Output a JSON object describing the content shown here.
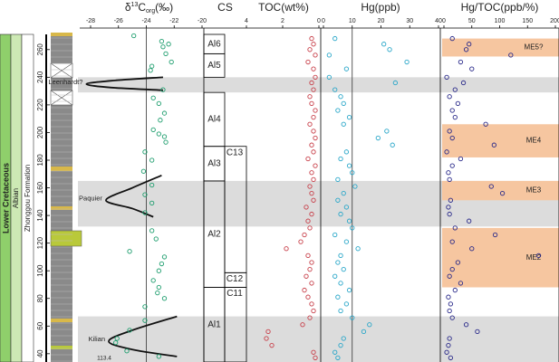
{
  "strat_labels": {
    "system": "Lower Cretaceous",
    "stage": "Albian",
    "formation": "Zhonggou Formation"
  },
  "age_label": 113.4,
  "depth_axis": {
    "ylim": [
      34,
      271
    ],
    "yticks": [
      40,
      60,
      80,
      100,
      120,
      140,
      160,
      180,
      200,
      220,
      240,
      260
    ]
  },
  "highlight_bands": [
    {
      "top": 240,
      "bottom": 229
    },
    {
      "top": 165,
      "bottom": 132
    },
    {
      "top": 67,
      "bottom": 34
    }
  ],
  "chart_data": [
    {
      "type": "scatter",
      "title": {
        "base": "δ",
        "sup": "13",
        "main": "C",
        "sub": "org",
        "unit": "(‰)"
      },
      "xlim": [
        -28,
        -20
      ],
      "xticks": [
        -28,
        -26,
        -24,
        -22,
        -20
      ],
      "color": "#1e9e6e",
      "reference_x": -24,
      "x": [
        -24.9,
        -22.9,
        -22.4,
        -22.8,
        -22.6,
        -22.2,
        -23.6,
        -23.7,
        -22.8,
        -23.5,
        -23.1,
        -22.7,
        -23.0,
        -23.5,
        -23.1,
        -22.7,
        -22.6,
        -24.1,
        -23.6,
        -24.2,
        -23.6,
        -24.1,
        -23.6,
        -24.1,
        -23.6,
        -23.3,
        -25.2,
        -22.7,
        -22.9,
        -23.1,
        -23.5,
        -23.1,
        -23.2,
        -22.7,
        -24.1,
        -24.1,
        -25.2,
        -26.1,
        -26.2,
        -25.4,
        -23.1
      ],
      "y": [
        270,
        266,
        264,
        262,
        257,
        251,
        248,
        245,
        231,
        225,
        221,
        214,
        209,
        202,
        199,
        197,
        193,
        186,
        180,
        172,
        162,
        155,
        149,
        142,
        129,
        123,
        114,
        110,
        105,
        100,
        93,
        88,
        84,
        80,
        74,
        64,
        57,
        51,
        48,
        42,
        38
      ],
      "curves": [
        {
          "label": "Leenhardt?",
          "x": [
            -22.8,
            -26.5,
            -28.3,
            -26.5,
            -22.8
          ],
          "y": [
            240,
            237.5,
            235,
            232.5,
            230.6
          ]
        },
        {
          "label": "Paquier",
          "x": [
            -22.9,
            -25,
            -26.9,
            -25,
            -23.5
          ],
          "y": [
            169,
            160,
            151,
            145,
            139
          ]
        },
        {
          "label": "Kilian",
          "x": [
            -21.8,
            -25,
            -26.7,
            -25,
            -21.8
          ],
          "y": [
            67,
            57,
            49,
            43,
            38
          ]
        }
      ]
    },
    {
      "type": "zones",
      "title": "CS",
      "zones": [
        {
          "label": "Al6",
          "top": 271,
          "bottom": 257
        },
        {
          "label": "Al5",
          "top": 257,
          "bottom": 240
        },
        {
          "label": "Al4",
          "top": 229,
          "bottom": 190
        },
        {
          "label": "Al3",
          "top": 190,
          "bottom": 165
        },
        {
          "label": "Al2",
          "top": 165,
          "bottom": 88
        },
        {
          "label": "Al1",
          "top": 88,
          "bottom": 34
        }
      ],
      "chrons": [
        {
          "label": "C13",
          "top": 190,
          "bottom": 98.6
        },
        {
          "label": "C12",
          "top": 98.6,
          "bottom": 88
        },
        {
          "label": "C11",
          "top": 88,
          "bottom": 34
        }
      ]
    },
    {
      "type": "scatter",
      "title": "TOC(wt%)",
      "xlim": [
        4,
        0
      ],
      "xticks": [
        4,
        2,
        0
      ],
      "color": "#c8404a",
      "x": [
        0.4,
        0.3,
        0.5,
        0.2,
        0.6,
        0.3,
        0.2,
        0.4,
        0.3,
        0.5,
        0.4,
        0.2,
        0.3,
        0.5,
        0.3,
        0.2,
        0.4,
        0.3,
        0.6,
        0.2,
        0.4,
        0.3,
        0.5,
        0.4,
        0.3,
        0.7,
        0.4,
        0.6,
        0.5,
        0.8,
        1.0,
        1.8,
        0.6,
        0.4,
        0.5,
        0.7,
        0.4,
        0.8,
        0.6,
        0.4,
        0.3,
        0.5,
        0.9,
        2.8,
        2.9,
        2.6,
        0.3,
        0.2
      ],
      "y": [
        268,
        264,
        260,
        256,
        251,
        246,
        240,
        236,
        231,
        226,
        221,
        216,
        211,
        206,
        201,
        196,
        191,
        186,
        181,
        176,
        171,
        166,
        161,
        156,
        151,
        146,
        141,
        136,
        131,
        126,
        121,
        116,
        111,
        106,
        101,
        96,
        91,
        86,
        81,
        76,
        71,
        66,
        61,
        56,
        51,
        46,
        41,
        37
      ]
    },
    {
      "type": "scatter",
      "title": "Hg(ppb)",
      "xlim": [
        0,
        40
      ],
      "xticks": [
        0,
        10,
        20,
        30,
        40
      ],
      "color": "#2aa7c9",
      "reference_x": 10,
      "x": [
        4,
        21,
        23,
        2,
        29,
        8,
        2,
        25,
        4,
        6,
        7,
        5,
        9,
        7,
        22,
        19,
        24,
        8,
        6,
        9,
        10,
        5,
        11,
        7,
        5,
        8,
        6,
        9,
        10,
        4,
        8,
        12,
        6,
        5,
        7,
        4,
        6,
        9,
        5,
        8,
        6,
        10,
        16,
        14,
        7,
        6,
        4,
        5
      ],
      "y": [
        268,
        264,
        260,
        256,
        251,
        246,
        240,
        236,
        231,
        226,
        221,
        216,
        211,
        206,
        201,
        196,
        191,
        186,
        181,
        176,
        171,
        166,
        161,
        156,
        151,
        146,
        141,
        136,
        131,
        126,
        121,
        116,
        111,
        106,
        101,
        96,
        91,
        86,
        81,
        76,
        71,
        66,
        61,
        56,
        51,
        46,
        41,
        37
      ]
    },
    {
      "type": "scatter",
      "title": "Hg/TOC(ppb/%)",
      "xlim": [
        0,
        200
      ],
      "xticks": [
        0,
        50,
        100,
        150,
        200
      ],
      "color": "#2a2a8a",
      "x": [
        15,
        45,
        40,
        120,
        30,
        50,
        5,
        35,
        20,
        10,
        25,
        15,
        20,
        75,
        10,
        15,
        90,
        5,
        30,
        15,
        8,
        10,
        85,
        105,
        12,
        8,
        10,
        45,
        20,
        92,
        15,
        50,
        170,
        25,
        15,
        10,
        30,
        20,
        8,
        12,
        10,
        15,
        40,
        60,
        10,
        8,
        5,
        12
      ],
      "y": [
        268,
        264,
        260,
        256,
        251,
        246,
        240,
        236,
        231,
        226,
        221,
        216,
        211,
        206,
        201,
        196,
        191,
        186,
        181,
        176,
        171,
        166,
        161,
        156,
        151,
        146,
        141,
        136,
        131,
        126,
        121,
        116,
        111,
        106,
        101,
        96,
        91,
        86,
        81,
        76,
        71,
        66,
        61,
        56,
        51,
        46,
        41,
        37
      ],
      "zones": [
        {
          "label": "ME5?",
          "top": 268,
          "bottom": 255
        },
        {
          "label": "ME4",
          "top": 206,
          "bottom": 182
        },
        {
          "label": "ME3",
          "top": 165,
          "bottom": 151
        },
        {
          "label": "ME2",
          "top": 131,
          "bottom": 88
        }
      ]
    }
  ]
}
